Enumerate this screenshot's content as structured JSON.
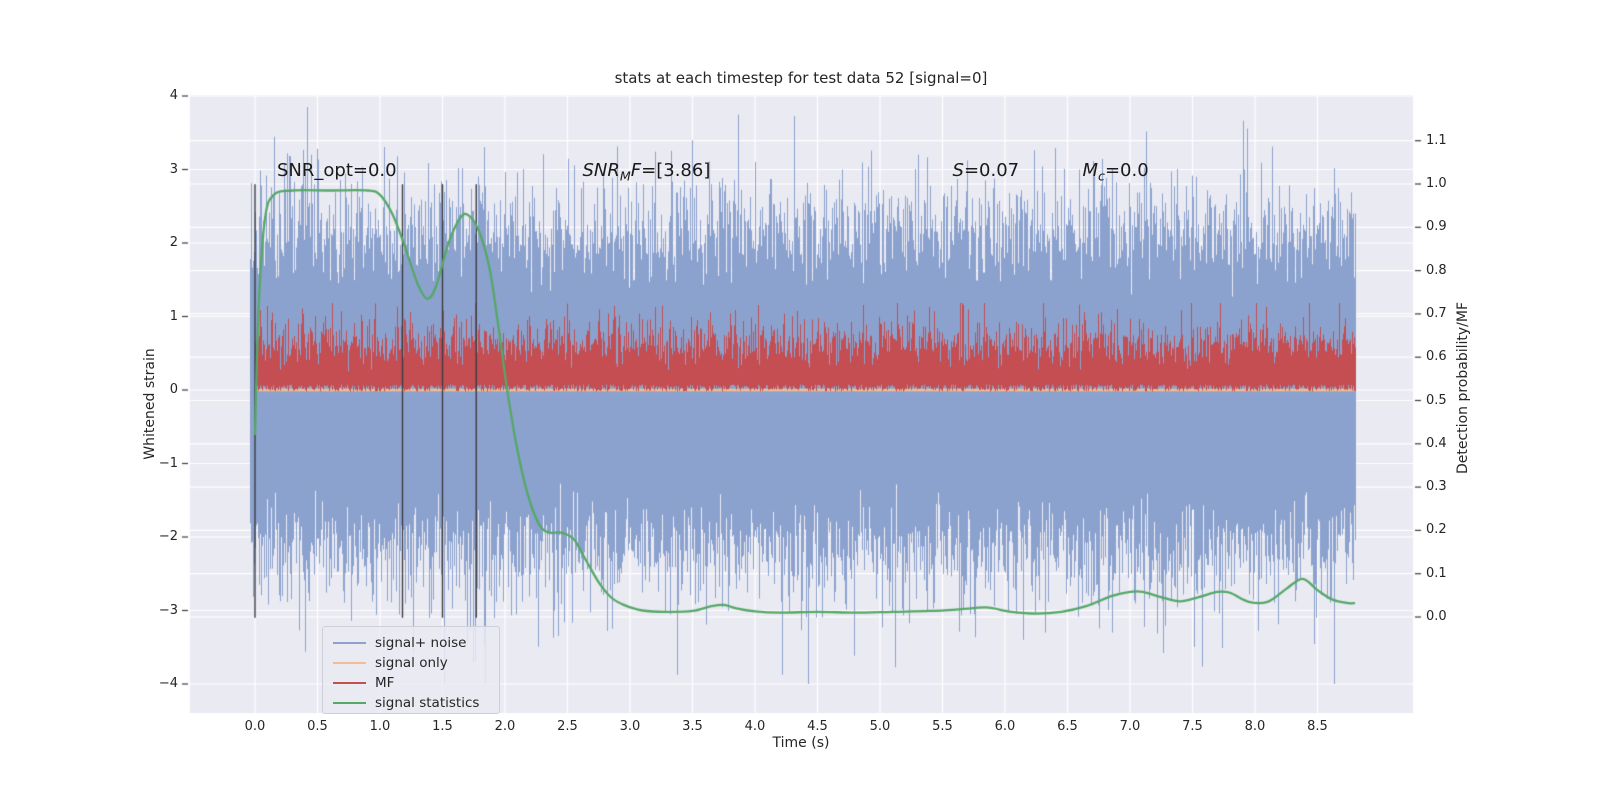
{
  "figure": {
    "title": "stats at each timestep for test data 52 [signal=0]",
    "background_color": "#ffffff",
    "plot_background_color": "#eaeaf2",
    "grid_color": "#ffffff"
  },
  "axes": {
    "x": {
      "label": "Time (s)",
      "ticks": [
        "0.0",
        "0.5",
        "1.0",
        "1.5",
        "2.0",
        "2.5",
        "3.0",
        "3.5",
        "4.0",
        "4.5",
        "5.0",
        "5.5",
        "6.0",
        "6.5",
        "7.0",
        "7.5",
        "8.0",
        "8.5"
      ],
      "tick_values": [
        0,
        0.5,
        1,
        1.5,
        2,
        2.5,
        3,
        3.5,
        4,
        4.5,
        5,
        5.5,
        6,
        6.5,
        7,
        7.5,
        8,
        8.5
      ]
    },
    "y_left": {
      "label": "Whitened strain",
      "ticks": [
        "4",
        "3",
        "2",
        "1",
        "0",
        "−1",
        "−2",
        "−3",
        "−4"
      ],
      "tick_values": [
        4,
        3,
        2,
        1,
        0,
        -1,
        -2,
        -3,
        -4
      ]
    },
    "y_right": {
      "label": "Detection probability/MF",
      "ticks": [
        "1.1",
        "1.0",
        "0.9",
        "0.8",
        "0.7",
        "0.6",
        "0.5",
        "0.4",
        "0.3",
        "0.2",
        "0.1",
        "0.0"
      ],
      "tick_values": [
        1.1,
        1.0,
        0.9,
        0.8,
        0.7,
        0.6,
        0.5,
        0.4,
        0.3,
        0.2,
        0.1,
        0.0
      ]
    }
  },
  "legend": {
    "position": "lower left",
    "items": [
      {
        "label": "signal+ noise",
        "color": "#8CA2CE"
      },
      {
        "label": "signal only",
        "color": "#F2BD92"
      },
      {
        "label": "MF",
        "color": "#C44E52"
      },
      {
        "label": "signal statistics",
        "color": "#55A868"
      }
    ]
  },
  "annotations": {
    "snr_opt": {
      "text": "SNR_opt=0.0"
    },
    "snr_mf": {
      "pre": "SNR",
      "sub": "M",
      "post": "F",
      "tail": "=[3.86]"
    },
    "s": {
      "pre": "S",
      "sub": "",
      "post": "",
      "tail": "=0.07"
    },
    "mc": {
      "pre": "M",
      "sub": "c",
      "post": "",
      "tail": "=0.0"
    }
  },
  "chart_data": {
    "type": "line",
    "title": "stats at each timestep for test data 52 [signal=0]",
    "xlabel": "Time (s)",
    "ylabel_left": "Whitened strain",
    "ylabel_right": "Detection probability/MF",
    "xlim": [
      -0.45,
      9.25
    ],
    "ylim_left": [
      -4.3,
      4.0
    ],
    "ylim_right": [
      -0.22,
      1.21
    ],
    "grid": true,
    "x_data_range_s": [
      0,
      8.8
    ],
    "series": [
      {
        "name": "signal+ noise",
        "axis": "left",
        "type": "noise_band",
        "color": "#8CA2CE",
        "description": "dense whitened noise, solid core about ±1.5, frequent excursions to ±2.8, rare spikes to ±3.9"
      },
      {
        "name": "signal only",
        "axis": "left",
        "type": "constant",
        "color": "#F2BD92",
        "value": 0.0
      },
      {
        "name": "MF",
        "axis": "right",
        "type": "noise_band",
        "color": "#C44E52",
        "typical_range": [
          0.53,
          0.63
        ],
        "extreme_range": [
          0.52,
          0.72
        ]
      },
      {
        "name": "signal statistics",
        "axis": "right",
        "type": "line",
        "color": "#55A868",
        "points": [
          [
            0.0,
            0.42
          ],
          [
            0.03,
            0.72
          ],
          [
            0.08,
            0.92
          ],
          [
            0.15,
            0.975
          ],
          [
            0.3,
            0.985
          ],
          [
            0.6,
            0.985
          ],
          [
            0.9,
            0.985
          ],
          [
            1.0,
            0.975
          ],
          [
            1.1,
            0.93
          ],
          [
            1.2,
            0.855
          ],
          [
            1.3,
            0.77
          ],
          [
            1.38,
            0.735
          ],
          [
            1.45,
            0.765
          ],
          [
            1.55,
            0.865
          ],
          [
            1.65,
            0.925
          ],
          [
            1.72,
            0.925
          ],
          [
            1.8,
            0.885
          ],
          [
            1.88,
            0.8
          ],
          [
            1.95,
            0.665
          ],
          [
            2.02,
            0.52
          ],
          [
            2.1,
            0.385
          ],
          [
            2.18,
            0.285
          ],
          [
            2.27,
            0.215
          ],
          [
            2.35,
            0.195
          ],
          [
            2.45,
            0.195
          ],
          [
            2.55,
            0.18
          ],
          [
            2.65,
            0.13
          ],
          [
            2.75,
            0.08
          ],
          [
            2.85,
            0.045
          ],
          [
            2.95,
            0.028
          ],
          [
            3.1,
            0.015
          ],
          [
            3.3,
            0.012
          ],
          [
            3.5,
            0.014
          ],
          [
            3.65,
            0.025
          ],
          [
            3.75,
            0.028
          ],
          [
            3.85,
            0.02
          ],
          [
            4.0,
            0.013
          ],
          [
            4.2,
            0.01
          ],
          [
            4.5,
            0.012
          ],
          [
            4.8,
            0.01
          ],
          [
            5.1,
            0.012
          ],
          [
            5.4,
            0.014
          ],
          [
            5.65,
            0.018
          ],
          [
            5.85,
            0.022
          ],
          [
            6.05,
            0.012
          ],
          [
            6.25,
            0.008
          ],
          [
            6.45,
            0.012
          ],
          [
            6.65,
            0.025
          ],
          [
            6.85,
            0.048
          ],
          [
            7.0,
            0.058
          ],
          [
            7.1,
            0.058
          ],
          [
            7.25,
            0.046
          ],
          [
            7.4,
            0.036
          ],
          [
            7.55,
            0.046
          ],
          [
            7.7,
            0.058
          ],
          [
            7.8,
            0.056
          ],
          [
            7.95,
            0.035
          ],
          [
            8.1,
            0.035
          ],
          [
            8.25,
            0.065
          ],
          [
            8.38,
            0.088
          ],
          [
            8.5,
            0.062
          ],
          [
            8.62,
            0.04
          ],
          [
            8.75,
            0.032
          ],
          [
            8.8,
            0.032
          ]
        ]
      }
    ],
    "vlines": {
      "times": [
        0.0,
        1.18,
        1.5,
        1.77
      ],
      "strain_span": [
        -3.1,
        2.8
      ],
      "color": "#3C3C42"
    },
    "annotations": [
      {
        "id": "snr_opt",
        "text": "SNR_opt=0.0",
        "t": 0.176,
        "value_right_axis": 1.03
      },
      {
        "id": "snr_mf",
        "text": "SNR_MF=[3.86]",
        "t": 2.62,
        "value_right_axis": 1.03
      },
      {
        "id": "s",
        "text": "S=0.07",
        "t": 5.58,
        "value_right_axis": 1.03
      },
      {
        "id": "mc",
        "text": "M_c=0.0",
        "t": 6.62,
        "value_right_axis": 1.03
      }
    ]
  }
}
